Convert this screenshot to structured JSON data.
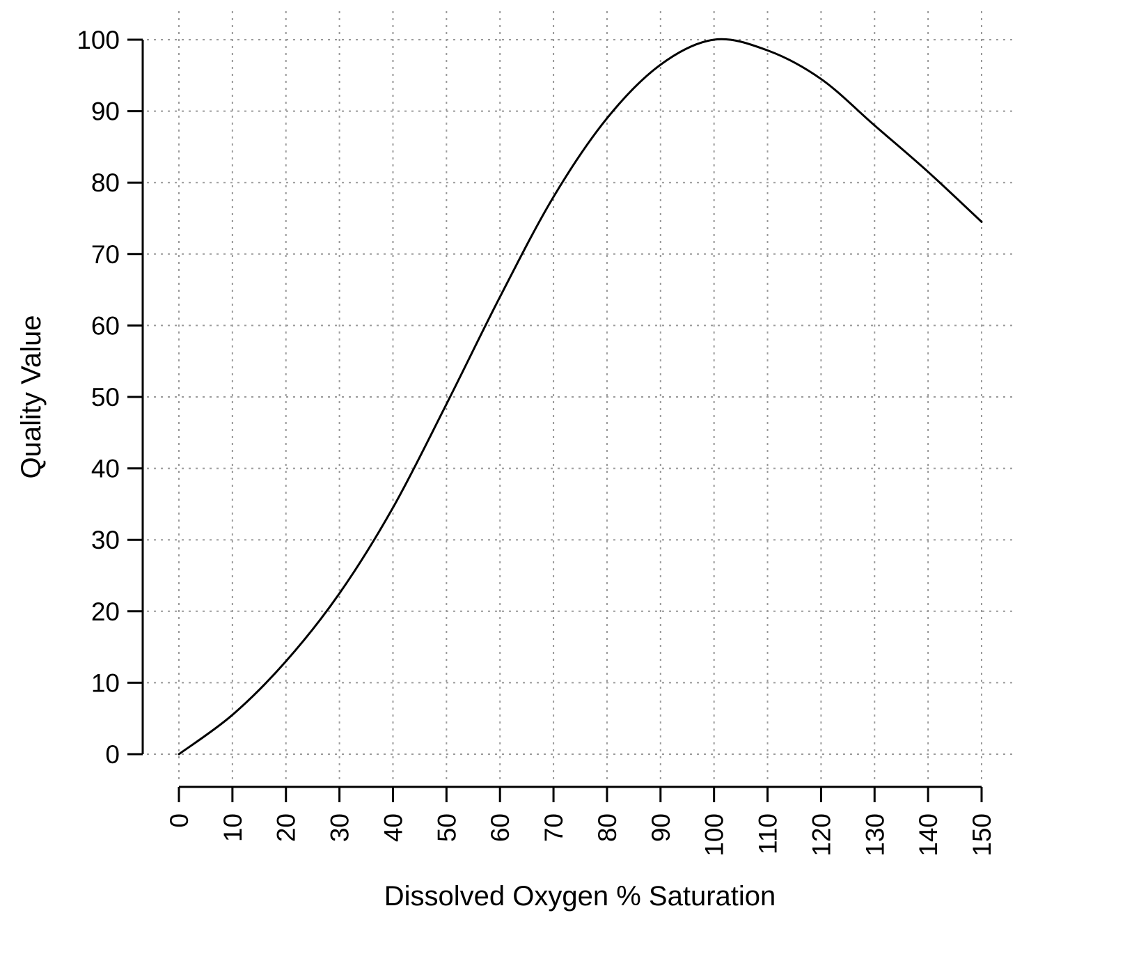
{
  "chart_data": {
    "type": "line",
    "title": "",
    "xlabel": "Dissolved Oxygen % Saturation",
    "ylabel": "Quality Value",
    "x": [
      0,
      10,
      20,
      30,
      40,
      50,
      60,
      70,
      80,
      90,
      100,
      110,
      120,
      130,
      140,
      150
    ],
    "y": [
      0,
      5.5,
      13,
      22.5,
      34.5,
      49,
      64,
      78,
      89,
      96.5,
      100,
      98.5,
      94.5,
      88,
      81.5,
      74.5
    ],
    "xlim": [
      0,
      150
    ],
    "ylim": [
      0,
      100
    ],
    "xticks": [
      0,
      10,
      20,
      30,
      40,
      50,
      60,
      70,
      80,
      90,
      100,
      110,
      120,
      130,
      140,
      150
    ],
    "yticks": [
      0,
      10,
      20,
      30,
      40,
      50,
      60,
      70,
      80,
      90,
      100
    ],
    "grid": true,
    "grid_style": "dashed",
    "legend": "none",
    "line_color": "#000000",
    "grid_color": "#9a9a9a",
    "axis_color": "#000000",
    "background": "#ffffff",
    "x_tick_label_rotation_deg": -90
  }
}
